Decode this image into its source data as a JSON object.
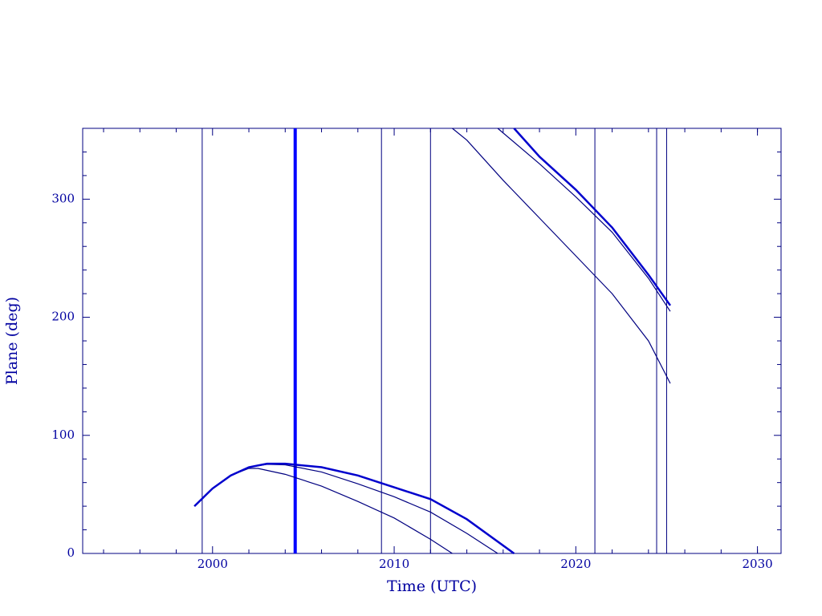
{
  "chart_data": {
    "type": "line",
    "xlabel": "Time (UTC)",
    "ylabel": "Plane (deg)",
    "xlim": [
      1992.85,
      2031.3
    ],
    "ylim": [
      0,
      360
    ],
    "xticks": [
      2000,
      2010,
      2020,
      2030
    ],
    "yticks": [
      0,
      100,
      200,
      300
    ],
    "x_minor_ticks": [
      1994,
      1996,
      1998,
      2002,
      2004,
      2006,
      2008,
      2012,
      2014,
      2016,
      2018,
      2022,
      2024,
      2026,
      2028,
      2030
    ],
    "y_minor_ticks": [
      20,
      40,
      60,
      80,
      120,
      140,
      160,
      180,
      220,
      240,
      260,
      280,
      320,
      340
    ],
    "vertical_lines": [
      {
        "x": 1999.43,
        "color": "#000080",
        "highlight": false
      },
      {
        "x": 2004.55,
        "color": "#0000ff",
        "highlight": true
      },
      {
        "x": 2009.3,
        "color": "#000080",
        "highlight": false
      },
      {
        "x": 2012.0,
        "color": "#000080",
        "highlight": false
      },
      {
        "x": 2021.05,
        "color": "#000080",
        "highlight": false
      },
      {
        "x": 2024.45,
        "color": "#000080",
        "highlight": false
      },
      {
        "x": 2025.0,
        "color": "#000080",
        "highlight": false
      }
    ],
    "series": [
      {
        "color": "#000080",
        "highlight": false,
        "x": [
          1999.0,
          2000,
          2001,
          2002,
          2002.5,
          2004,
          2006,
          2008,
          2010,
          2012,
          2013.2,
          2013.2,
          2013.2,
          2014,
          2016,
          2018,
          2020,
          2022,
          2024,
          2025.2
        ],
        "values": [
          40,
          55,
          66,
          72,
          72,
          67,
          57,
          44,
          30,
          12,
          0,
          null,
          360,
          350,
          316,
          284,
          252,
          220,
          180,
          144
        ]
      },
      {
        "color": "#000080",
        "highlight": false,
        "x": [
          1999.0,
          2000,
          2001,
          2002,
          2003,
          2004,
          2006,
          2008,
          2010,
          2012,
          2014,
          2015.7,
          2015.7,
          2015.7,
          2018,
          2020,
          2022,
          2024,
          2025.2
        ],
        "values": [
          40,
          55,
          66,
          73,
          75.5,
          75,
          69,
          59,
          48,
          35,
          17,
          0,
          null,
          360,
          330,
          302,
          272,
          233,
          205
        ]
      },
      {
        "color": "#0000cd",
        "highlight": true,
        "x": [
          1999.0,
          2000,
          2001,
          2002,
          2003,
          2004,
          2006,
          2008,
          2010,
          2012,
          2014,
          2016.6,
          2016.6,
          2016.6,
          2018,
          2020,
          2022,
          2024,
          2025.2
        ],
        "values": [
          40,
          55,
          66,
          73,
          76,
          76,
          73,
          66,
          56,
          46,
          29,
          0,
          null,
          360,
          336,
          308,
          276,
          236,
          210
        ]
      }
    ]
  }
}
